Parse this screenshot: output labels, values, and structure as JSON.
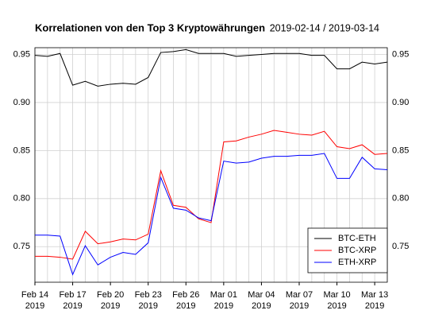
{
  "chart_data": {
    "type": "line",
    "title": "Korrelationen von den Top 3 Kryptowährungen",
    "subtitle": "2019-02-14 / 2019-03-14",
    "x": [
      "2019-02-14",
      "2019-02-15",
      "2019-02-16",
      "2019-02-17",
      "2019-02-18",
      "2019-02-19",
      "2019-02-20",
      "2019-02-21",
      "2019-02-22",
      "2019-02-23",
      "2019-02-24",
      "2019-02-25",
      "2019-02-26",
      "2019-02-27",
      "2019-02-28",
      "2019-03-01",
      "2019-03-02",
      "2019-03-03",
      "2019-03-04",
      "2019-03-05",
      "2019-03-06",
      "2019-03-07",
      "2019-03-08",
      "2019-03-09",
      "2019-03-10",
      "2019-03-11",
      "2019-03-12",
      "2019-03-13",
      "2019-03-14"
    ],
    "series": [
      {
        "name": "BTC-ETH",
        "color": "#000000",
        "values": [
          0.949,
          0.948,
          0.951,
          0.918,
          0.922,
          0.917,
          0.919,
          0.92,
          0.919,
          0.926,
          0.952,
          0.953,
          0.955,
          0.951,
          0.951,
          0.951,
          0.948,
          0.949,
          0.95,
          0.951,
          0.951,
          0.951,
          0.949,
          0.949,
          0.935,
          0.935,
          0.942,
          0.94,
          0.942
        ]
      },
      {
        "name": "BTC-XRP",
        "color": "#ff0000",
        "values": [
          0.74,
          0.74,
          0.739,
          0.737,
          0.766,
          0.753,
          0.755,
          0.758,
          0.757,
          0.763,
          0.829,
          0.793,
          0.791,
          0.779,
          0.775,
          0.859,
          0.86,
          0.864,
          0.867,
          0.871,
          0.869,
          0.867,
          0.866,
          0.87,
          0.854,
          0.852,
          0.856,
          0.846,
          0.847
        ]
      },
      {
        "name": "ETH-XRP",
        "color": "#0000ff",
        "values": [
          0.762,
          0.762,
          0.761,
          0.721,
          0.751,
          0.731,
          0.739,
          0.744,
          0.742,
          0.754,
          0.822,
          0.79,
          0.788,
          0.78,
          0.777,
          0.839,
          0.837,
          0.838,
          0.842,
          0.844,
          0.844,
          0.845,
          0.845,
          0.847,
          0.821,
          0.821,
          0.843,
          0.831,
          0.83
        ]
      }
    ],
    "ylim": [
      0.713,
      0.957
    ],
    "yticks": [
      {
        "value": 0.75,
        "label": "0.75"
      },
      {
        "value": 0.8,
        "label": "0.80"
      },
      {
        "value": 0.85,
        "label": "0.85"
      },
      {
        "value": 0.9,
        "label": "0.90"
      },
      {
        "value": 0.95,
        "label": "0.95"
      }
    ],
    "xticks": [
      {
        "value": "2019-02-14",
        "label": [
          "Feb 14",
          "2019"
        ]
      },
      {
        "value": "2019-02-17",
        "label": [
          "Feb 17",
          "2019"
        ]
      },
      {
        "value": "2019-02-20",
        "label": [
          "Feb 20",
          "2019"
        ]
      },
      {
        "value": "2019-02-23",
        "label": [
          "Feb 23",
          "2019"
        ]
      },
      {
        "value": "2019-02-26",
        "label": [
          "Feb 26",
          "2019"
        ]
      },
      {
        "value": "2019-03-01",
        "label": [
          "Mar 01",
          "2019"
        ]
      },
      {
        "value": "2019-03-04",
        "label": [
          "Mar 04",
          "2019"
        ]
      },
      {
        "value": "2019-03-07",
        "label": [
          "Mar 07",
          "2019"
        ]
      },
      {
        "value": "2019-03-10",
        "label": [
          "Mar 10",
          "2019"
        ]
      },
      {
        "value": "2019-03-13",
        "label": [
          "Mar 13",
          "2019"
        ]
      }
    ],
    "grid": true,
    "legend": "bottom-right"
  }
}
